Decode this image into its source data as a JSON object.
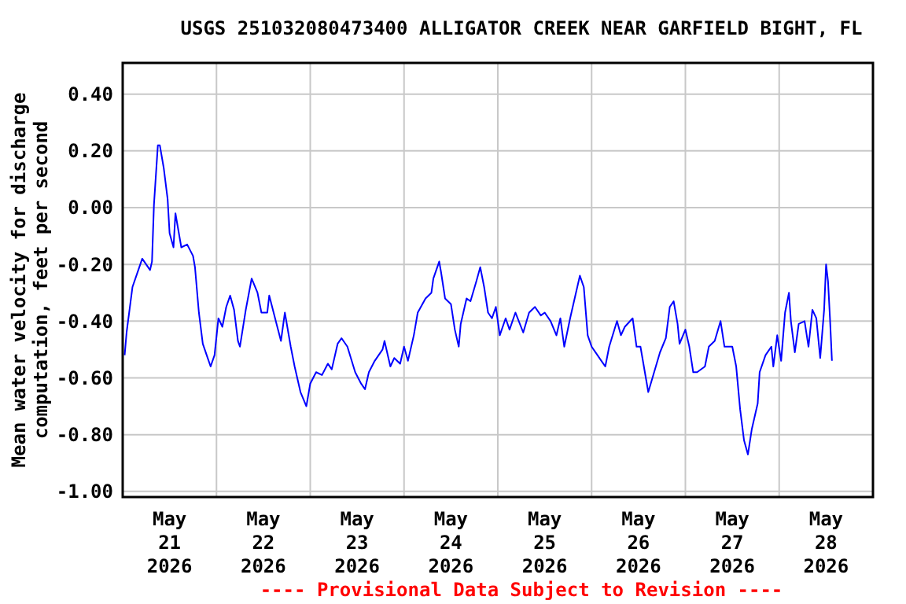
{
  "chart_data": {
    "type": "line",
    "title": "USGS 251032080473400 ALLIGATOR CREEK NEAR GARFIELD BIGHT, FL",
    "ylabel": "Mean water velocity for discharge\ncomputation, feet per second",
    "annotations": [
      "---- Provisional Data Subject to Revision ----"
    ],
    "xlim": [
      "2026-05-21T00:00",
      "2026-05-29T00:00"
    ],
    "xticks": [
      {
        "value": "2026-05-21T12:00",
        "label": "May\n21\n2026"
      },
      {
        "value": "2026-05-22T00:00",
        "label": null
      },
      {
        "value": "2026-05-22T12:00",
        "label": "May\n22\n2026"
      },
      {
        "value": "2026-05-23T00:00",
        "label": null
      },
      {
        "value": "2026-05-23T12:00",
        "label": "May\n23\n2026"
      },
      {
        "value": "2026-05-24T00:00",
        "label": null
      },
      {
        "value": "2026-05-24T12:00",
        "label": "May\n24\n2026"
      },
      {
        "value": "2026-05-25T00:00",
        "label": null
      },
      {
        "value": "2026-05-25T12:00",
        "label": "May\n25\n2026"
      },
      {
        "value": "2026-05-26T00:00",
        "label": null
      },
      {
        "value": "2026-05-26T12:00",
        "label": "May\n26\n2026"
      },
      {
        "value": "2026-05-27T00:00",
        "label": null
      },
      {
        "value": "2026-05-27T12:00",
        "label": "May\n27\n2026"
      },
      {
        "value": "2026-05-28T00:00",
        "label": null
      },
      {
        "value": "2026-05-28T12:00",
        "label": "May\n28\n2026"
      }
    ],
    "ylim": [
      -1.02,
      0.51
    ],
    "yticks": [
      {
        "value": 0.4,
        "label": "0.40"
      },
      {
        "value": 0.2,
        "label": "0.20"
      },
      {
        "value": 0,
        "label": "0.00"
      },
      {
        "value": -0.2,
        "label": "-0.20"
      },
      {
        "value": -0.4,
        "label": "-0.40"
      },
      {
        "value": -0.6,
        "label": "-0.60"
      },
      {
        "value": -0.8,
        "label": "-0.80"
      },
      {
        "value": -1,
        "label": "-1.00"
      }
    ],
    "grid": true,
    "line_style": "solid",
    "series": [
      {
        "color": "#0000ff",
        "x": [
          "2026-05-21T00:30",
          "2026-05-21T01:00",
          "2026-05-21T02:30",
          "2026-05-21T04:00",
          "2026-05-21T05:00",
          "2026-05-21T07:00",
          "2026-05-21T07:30",
          "2026-05-21T08:00",
          "2026-05-21T09:00",
          "2026-05-21T09:30",
          "2026-05-21T10:30",
          "2026-05-21T11:30",
          "2026-05-21T12:00",
          "2026-05-21T13:00",
          "2026-05-21T13:30",
          "2026-05-21T15:00",
          "2026-05-21T16:30",
          "2026-05-21T18:00",
          "2026-05-21T18:30",
          "2026-05-21T19:30",
          "2026-05-21T20:30",
          "2026-05-21T21:30",
          "2026-05-21T22:30",
          "2026-05-21T23:30",
          "2026-05-22T00:30",
          "2026-05-22T01:30",
          "2026-05-22T02:30",
          "2026-05-22T03:30",
          "2026-05-22T04:30",
          "2026-05-22T05:30",
          "2026-05-22T06:00",
          "2026-05-22T07:30",
          "2026-05-22T09:00",
          "2026-05-22T10:30",
          "2026-05-22T11:30",
          "2026-05-22T13:00",
          "2026-05-22T13:30",
          "2026-05-22T15:00",
          "2026-05-22T16:30",
          "2026-05-22T17:30",
          "2026-05-22T19:00",
          "2026-05-22T20:00",
          "2026-05-22T21:30",
          "2026-05-22T23:00",
          "2026-05-23T00:00",
          "2026-05-23T01:30",
          "2026-05-23T03:00",
          "2026-05-23T04:30",
          "2026-05-23T05:30",
          "2026-05-23T07:00",
          "2026-05-23T08:00",
          "2026-05-23T09:30",
          "2026-05-23T11:30",
          "2026-05-23T13:00",
          "2026-05-23T14:00",
          "2026-05-23T15:00",
          "2026-05-23T16:30",
          "2026-05-23T18:30",
          "2026-05-23T19:00",
          "2026-05-23T20:30",
          "2026-05-23T21:30",
          "2026-05-23T23:00",
          "2026-05-24T00:00",
          "2026-05-24T01:00",
          "2026-05-24T02:30",
          "2026-05-24T03:30",
          "2026-05-24T05:30",
          "2026-05-24T07:00",
          "2026-05-24T07:30",
          "2026-05-24T09:00",
          "2026-05-24T09:30",
          "2026-05-24T10:30",
          "2026-05-24T12:00",
          "2026-05-24T13:00",
          "2026-05-24T14:00",
          "2026-05-24T14:30",
          "2026-05-24T16:00",
          "2026-05-24T17:00",
          "2026-05-24T18:30",
          "2026-05-24T19:30",
          "2026-05-24T20:30",
          "2026-05-24T21:30",
          "2026-05-24T22:30",
          "2026-05-24T23:30",
          "2026-05-25T00:30",
          "2026-05-25T02:00",
          "2026-05-25T03:00",
          "2026-05-25T04:30",
          "2026-05-25T06:30",
          "2026-05-25T08:00",
          "2026-05-25T09:30",
          "2026-05-25T11:00",
          "2026-05-25T12:00",
          "2026-05-25T13:30",
          "2026-05-25T15:00",
          "2026-05-25T16:00",
          "2026-05-25T17:00",
          "2026-05-25T18:30",
          "2026-05-25T19:30",
          "2026-05-25T21:00",
          "2026-05-25T22:00",
          "2026-05-25T23:00",
          "2026-05-26T00:00",
          "2026-05-26T01:30",
          "2026-05-26T02:30",
          "2026-05-26T03:30",
          "2026-05-26T04:30",
          "2026-05-26T06:30",
          "2026-05-26T07:30",
          "2026-05-26T08:30",
          "2026-05-26T10:30",
          "2026-05-26T11:30",
          "2026-05-26T12:30",
          "2026-05-26T14:30",
          "2026-05-26T16:00",
          "2026-05-26T17:30",
          "2026-05-26T19:00",
          "2026-05-26T20:00",
          "2026-05-26T21:00",
          "2026-05-26T22:00",
          "2026-05-26T22:30",
          "2026-05-27T00:00",
          "2026-05-27T01:00",
          "2026-05-27T02:00",
          "2026-05-27T03:00",
          "2026-05-27T05:00",
          "2026-05-27T06:00",
          "2026-05-27T07:30",
          "2026-05-27T09:00",
          "2026-05-27T10:00",
          "2026-05-27T12:00",
          "2026-05-27T13:00",
          "2026-05-27T14:00",
          "2026-05-27T15:00",
          "2026-05-27T16:00",
          "2026-05-27T17:00",
          "2026-05-27T18:30",
          "2026-05-27T19:00",
          "2026-05-27T20:30",
          "2026-05-27T22:00",
          "2026-05-27T22:30",
          "2026-05-27T23:30",
          "2026-05-28T00:30",
          "2026-05-28T01:30",
          "2026-05-28T02:30",
          "2026-05-28T03:00",
          "2026-05-28T04:00",
          "2026-05-28T05:00",
          "2026-05-28T06:30",
          "2026-05-28T07:30",
          "2026-05-28T08:30",
          "2026-05-28T09:30",
          "2026-05-28T10:30",
          "2026-05-28T11:30",
          "2026-05-28T12:00",
          "2026-05-28T12:30",
          "2026-05-28T13:00",
          "2026-05-28T13:30"
        ],
        "values": [
          -0.52,
          -0.44,
          -0.28,
          -0.22,
          -0.18,
          -0.22,
          -0.19,
          0.01,
          0.22,
          0.22,
          0.14,
          0.03,
          -0.09,
          -0.14,
          -0.02,
          -0.14,
          -0.13,
          -0.17,
          -0.21,
          -0.37,
          -0.48,
          -0.52,
          -0.56,
          -0.52,
          -0.39,
          -0.42,
          -0.35,
          -0.31,
          -0.36,
          -0.47,
          -0.49,
          -0.36,
          -0.25,
          -0.3,
          -0.37,
          -0.37,
          -0.31,
          -0.39,
          -0.47,
          -0.37,
          -0.49,
          -0.56,
          -0.65,
          -0.7,
          -0.62,
          -0.58,
          -0.59,
          -0.55,
          -0.57,
          -0.48,
          -0.46,
          -0.49,
          -0.58,
          -0.62,
          -0.64,
          -0.58,
          -0.54,
          -0.5,
          -0.47,
          -0.56,
          -0.53,
          -0.55,
          -0.49,
          -0.54,
          -0.45,
          -0.37,
          -0.32,
          -0.3,
          -0.25,
          -0.19,
          -0.23,
          -0.32,
          -0.34,
          -0.43,
          -0.49,
          -0.41,
          -0.32,
          -0.33,
          -0.26,
          -0.21,
          -0.28,
          -0.37,
          -0.39,
          -0.35,
          -0.45,
          -0.39,
          -0.43,
          -0.37,
          -0.44,
          -0.37,
          -0.35,
          -0.38,
          -0.37,
          -0.4,
          -0.45,
          -0.39,
          -0.49,
          -0.39,
          -0.33,
          -0.24,
          -0.28,
          -0.45,
          -0.49,
          -0.52,
          -0.54,
          -0.56,
          -0.49,
          -0.4,
          -0.45,
          -0.42,
          -0.39,
          -0.49,
          -0.49,
          -0.65,
          -0.58,
          -0.51,
          -0.46,
          -0.35,
          -0.33,
          -0.41,
          -0.48,
          -0.43,
          -0.49,
          -0.58,
          -0.58,
          -0.56,
          -0.49,
          -0.47,
          -0.4,
          -0.49,
          -0.49,
          -0.56,
          -0.71,
          -0.82,
          -0.87,
          -0.78,
          -0.69,
          -0.58,
          -0.52,
          -0.49,
          -0.56,
          -0.45,
          -0.54,
          -0.37,
          -0.3,
          -0.4,
          -0.51,
          -0.41,
          -0.4,
          -0.49,
          -0.36,
          -0.39,
          -0.53,
          -0.36,
          -0.2,
          -0.26,
          -0.39,
          -0.54
        ]
      }
    ]
  }
}
